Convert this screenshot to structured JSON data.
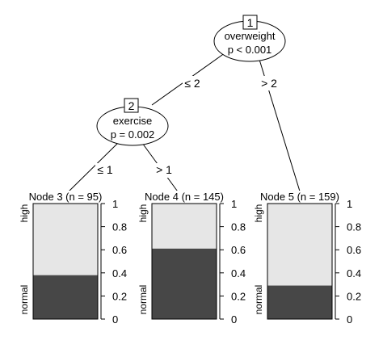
{
  "tree": {
    "inner_nodes": [
      {
        "id": "1",
        "variable": "overweight",
        "pvalue": "p < 0.001"
      },
      {
        "id": "2",
        "variable": "exercise",
        "pvalue": "p = 0.002"
      }
    ],
    "edges": [
      {
        "from": "1",
        "to": "2",
        "label": "≤ 2"
      },
      {
        "from": "1",
        "to": "5",
        "label": "> 2"
      },
      {
        "from": "2",
        "to": "3",
        "label": "≤ 1"
      },
      {
        "from": "2",
        "to": "4",
        "label": "> 1"
      }
    ],
    "terminal_nodes": [
      {
        "id": "3",
        "title": "Node 3 (n = 95)",
        "normal_fraction": 0.38,
        "high_fraction": 0.62
      },
      {
        "id": "4",
        "title": "Node 4 (n = 145)",
        "normal_fraction": 0.61,
        "high_fraction": 0.39
      },
      {
        "id": "5",
        "title": "Node 5 (n = 159)",
        "normal_fraction": 0.29,
        "high_fraction": 0.71
      }
    ],
    "class_labels": {
      "top": "high",
      "bottom": "normal"
    },
    "axis_ticks": [
      "0",
      "0.2",
      "0.4",
      "0.6",
      "0.8",
      "1"
    ],
    "colors": {
      "high": "#e6e6e6",
      "normal": "#474747",
      "border": "#000000"
    }
  }
}
